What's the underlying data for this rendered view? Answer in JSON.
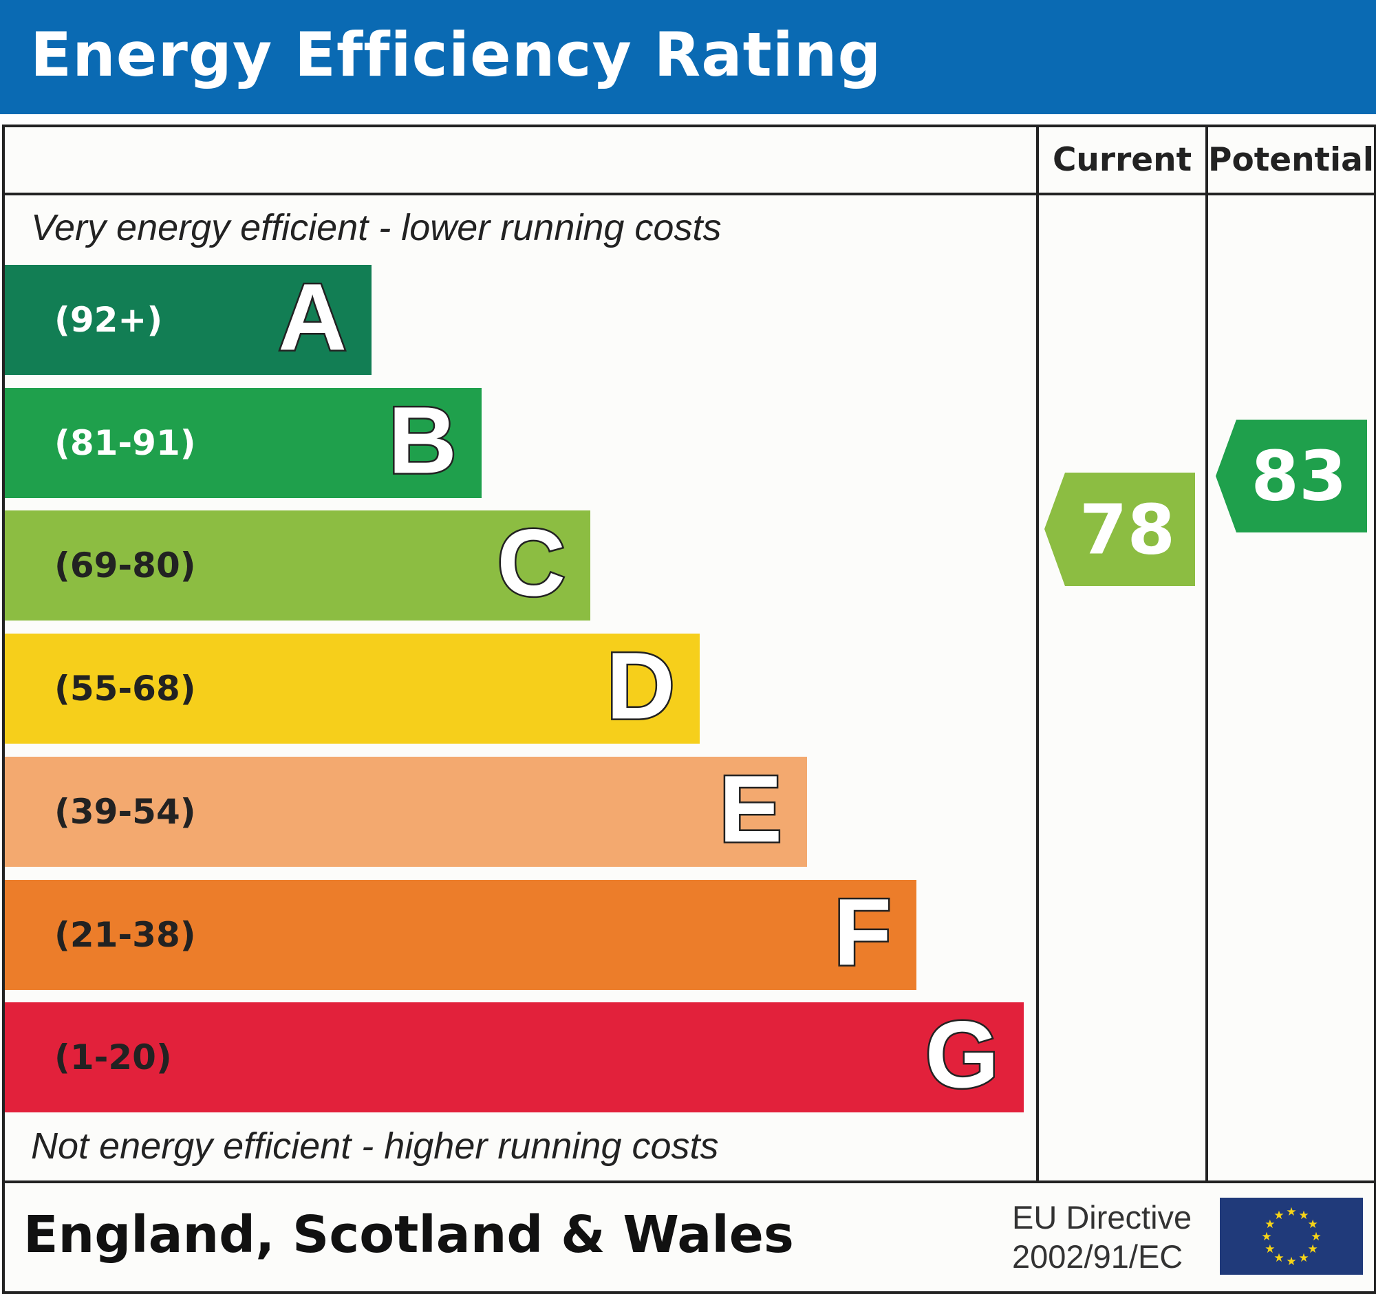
{
  "header": {
    "title": "Energy Efficiency Rating"
  },
  "columns": {
    "current": "Current",
    "potential": "Potential"
  },
  "notes": {
    "top": "Very energy efficient - lower running costs",
    "bottom": "Not energy efficient - higher running costs"
  },
  "footer": {
    "region": "England, Scotland & Wales",
    "directive_line1": "EU Directive",
    "directive_line2": "2002/91/EC",
    "flag_icon": "eu-flag-icon"
  },
  "chart_data": {
    "type": "bar",
    "title": "Energy Efficiency Rating",
    "orientation": "horizontal",
    "categories": [
      "A",
      "B",
      "C",
      "D",
      "E",
      "F",
      "G"
    ],
    "ranges": [
      "(92+)",
      "(81-91)",
      "(69-80)",
      "(55-68)",
      "(39-54)",
      "(21-38)",
      "(1-20)"
    ],
    "colors": [
      "#127e54",
      "#1fa04c",
      "#8cbd42",
      "#f6cf1b",
      "#f3a96f",
      "#ec7d2a",
      "#e2213b"
    ],
    "range_text_colors": [
      "#ffffff",
      "#ffffff",
      "#222222",
      "#222222",
      "#222222",
      "#222222",
      "#222222"
    ],
    "current": {
      "value": 78,
      "band": "C",
      "color": "#8cbd42"
    },
    "potential": {
      "value": 83,
      "band": "B",
      "color": "#1fa04c"
    }
  }
}
